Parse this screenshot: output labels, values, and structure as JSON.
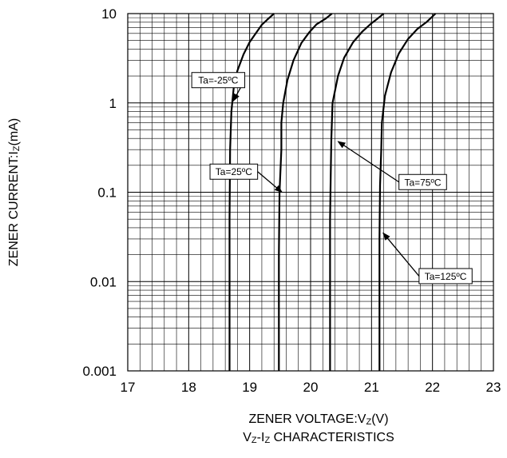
{
  "chart_data": {
    "type": "line",
    "xlabel": "ZENER VOLTAGE:V",
    "xlabel_sub": "Z",
    "xlabel_unit": "(V)",
    "ylabel": "ZENER CURRENT:I",
    "ylabel_sub": "Z",
    "ylabel_unit": "(mA)",
    "caption": {
      "v": "V",
      "vsub": "Z",
      "dash": "-I",
      "isub": "Z",
      "rest": " CHARACTERISTICS"
    },
    "xlim": [
      17,
      23
    ],
    "ylim": [
      0.001,
      10
    ],
    "yscale": "log",
    "grid": true,
    "x_ticks": [
      "17",
      "18",
      "19",
      "20",
      "21",
      "22",
      "23"
    ],
    "y_ticks": [
      "0.001",
      "0.01",
      "0.1",
      "1",
      "10"
    ],
    "series": [
      {
        "name": "Ta=-25ºC",
        "points": [
          [
            18.67,
            0.001
          ],
          [
            18.67,
            0.05
          ],
          [
            18.68,
            0.3
          ],
          [
            18.7,
            0.8
          ],
          [
            18.74,
            1.5
          ],
          [
            18.8,
            2.3
          ],
          [
            18.9,
            3.5
          ],
          [
            19.0,
            4.8
          ],
          [
            19.1,
            6.0
          ],
          [
            19.2,
            7.5
          ],
          [
            19.3,
            8.7
          ],
          [
            19.4,
            10
          ]
        ]
      },
      {
        "name": "Ta=25ºC",
        "points": [
          [
            19.48,
            0.001
          ],
          [
            19.48,
            0.02
          ],
          [
            19.49,
            0.1
          ],
          [
            19.52,
            0.3
          ],
          [
            19.52,
            0.6
          ],
          [
            19.55,
            1.0
          ],
          [
            19.62,
            1.8
          ],
          [
            19.72,
            3.0
          ],
          [
            19.85,
            4.7
          ],
          [
            19.98,
            6.2
          ],
          [
            20.1,
            7.6
          ],
          [
            20.25,
            8.8
          ],
          [
            20.35,
            10
          ]
        ]
      },
      {
        "name": "Ta=75ºC",
        "points": [
          [
            20.32,
            0.001
          ],
          [
            20.32,
            0.05
          ],
          [
            20.33,
            0.15
          ],
          [
            20.34,
            0.4
          ],
          [
            20.36,
            1.0
          ],
          [
            20.45,
            2.0
          ],
          [
            20.55,
            3.2
          ],
          [
            20.7,
            4.8
          ],
          [
            20.85,
            6.3
          ],
          [
            21.0,
            7.8
          ],
          [
            21.1,
            8.8
          ],
          [
            21.2,
            10
          ]
        ]
      },
      {
        "name": "Ta=125ºC",
        "points": [
          [
            21.13,
            0.001
          ],
          [
            21.13,
            0.03
          ],
          [
            21.14,
            0.12
          ],
          [
            21.16,
            0.3
          ],
          [
            21.17,
            0.6
          ],
          [
            21.22,
            1.2
          ],
          [
            21.32,
            2.2
          ],
          [
            21.45,
            3.6
          ],
          [
            21.6,
            5.2
          ],
          [
            21.75,
            6.7
          ],
          [
            21.9,
            8.0
          ],
          [
            22.05,
            10
          ]
        ]
      }
    ],
    "annotations": [
      {
        "text": "Ta=-25ºC",
        "box_x": 18.05,
        "box_y": 1.8,
        "arrow_to": [
          18.73,
          1.05
        ]
      },
      {
        "text": "Ta=25ºC",
        "box_x": 18.35,
        "box_y": 0.17,
        "arrow_to": [
          19.53,
          0.1
        ]
      },
      {
        "text": "Ta=75ºC",
        "box_x": 21.45,
        "box_y": 0.13,
        "arrow_to": [
          20.45,
          0.37
        ]
      },
      {
        "text": "Ta=125ºC",
        "box_x": 21.78,
        "box_y": 0.0115,
        "arrow_to": [
          21.19,
          0.035
        ]
      }
    ]
  }
}
